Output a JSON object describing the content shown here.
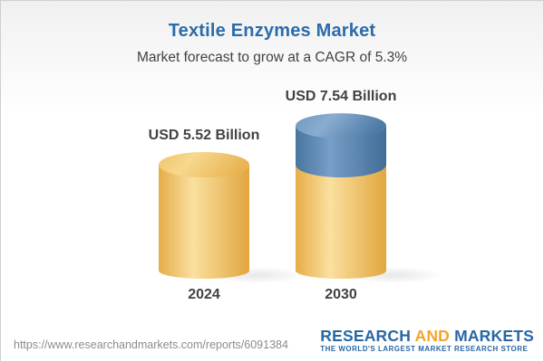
{
  "header": {
    "title": "Textile Enzymes Market",
    "subtitle": "Market forecast to grow at a CAGR of 5.3%"
  },
  "chart_data": {
    "type": "bar",
    "subtype": "3d-cylinder",
    "title": "Textile Enzymes Market",
    "subtitle": "Market forecast to grow at a CAGR of 5.3%",
    "cagr": "5.3%",
    "unit": "USD Billion",
    "categories": [
      "2024",
      "2030"
    ],
    "values": [
      5.52,
      7.54
    ],
    "value_labels": [
      "USD 5.52 Billion",
      "USD 7.54 Billion"
    ],
    "ylim": [
      0,
      8
    ],
    "grid": false,
    "legend": false,
    "bars": [
      {
        "category": "2024",
        "value": 5.52,
        "label": "USD 5.52 Billion",
        "segments": [
          {
            "from": 0,
            "to": 5.52,
            "palette": "gold"
          }
        ]
      },
      {
        "category": "2030",
        "value": 7.54,
        "label": "USD 7.54 Billion",
        "segments": [
          {
            "from": 0,
            "to": 5.52,
            "palette": "gold"
          },
          {
            "from": 5.52,
            "to": 7.54,
            "palette": "blue"
          }
        ]
      }
    ],
    "palette": {
      "gold": {
        "body": [
          "#E6AD48",
          "#FAE0A0",
          "#E2A63E"
        ],
        "top": [
          "#EFC468",
          "#F7D88C",
          "#E9B453"
        ]
      },
      "blue": {
        "body": [
          "#48759F",
          "#769EC6",
          "#416D96"
        ],
        "top": [
          "#6E97BE",
          "#89ADD0",
          "#4E7AA6"
        ]
      }
    }
  },
  "footer": {
    "url": "https://www.researchandmarkets.com/reports/6091384",
    "logo": {
      "research": "RESEARCH",
      "and": "AND",
      "markets": "MARKETS",
      "tagline": "THE WORLD'S LARGEST MARKET RESEARCH STORE",
      "blue": "#2767A4",
      "orange": "#F2A52B"
    }
  }
}
